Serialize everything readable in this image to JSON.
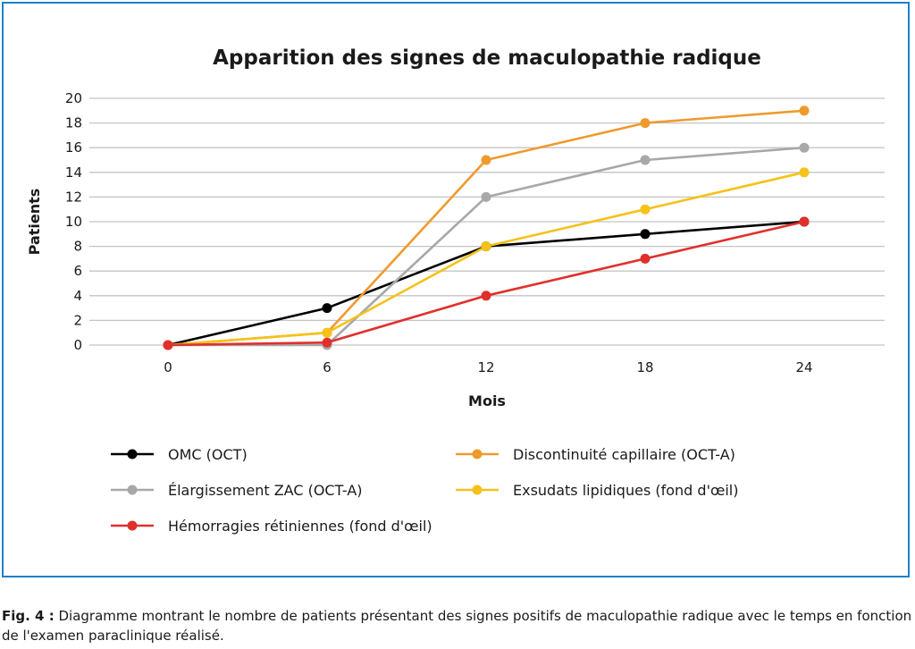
{
  "colors": {
    "frame": "#1e80c9",
    "grid": "#c4c4c4"
  },
  "chart_data": {
    "type": "line",
    "title": "Apparition des signes de maculopathie radique",
    "xlabel": "Mois",
    "ylabel": "Patients",
    "x": [
      0,
      6,
      12,
      18,
      24
    ],
    "ylim": [
      0,
      20
    ],
    "yticks": [
      0,
      2,
      4,
      6,
      8,
      10,
      12,
      14,
      16,
      18,
      20
    ],
    "grid": true,
    "legend_position": "bottom",
    "series": [
      {
        "name": "OMC (OCT)",
        "color": "#000000",
        "values": [
          0,
          3,
          8,
          9,
          10
        ]
      },
      {
        "name": "Discontinuité capillaire (OCT-A)",
        "color": "#ef9a2d",
        "values": [
          0,
          1,
          15,
          18,
          19
        ]
      },
      {
        "name": "Élargissement ZAC (OCT-A)",
        "color": "#a8a8a8",
        "values": [
          0,
          0,
          12,
          15,
          16
        ]
      },
      {
        "name": "Exsudats lipidiques (fond d'œil)",
        "color": "#f5c219",
        "values": [
          0,
          1,
          8,
          11,
          14
        ]
      },
      {
        "name": "Hémorragies rétiniennes (fond d'œil)",
        "color": "#e0302c",
        "values": [
          0,
          0.2,
          4,
          7,
          10
        ]
      }
    ]
  },
  "caption": {
    "label": "Fig. 4 :",
    "text": "Diagramme montrant le nombre de patients présentant des signes positifs de maculopathie radique avec le temps en fonction de l'examen paraclinique réalisé."
  }
}
